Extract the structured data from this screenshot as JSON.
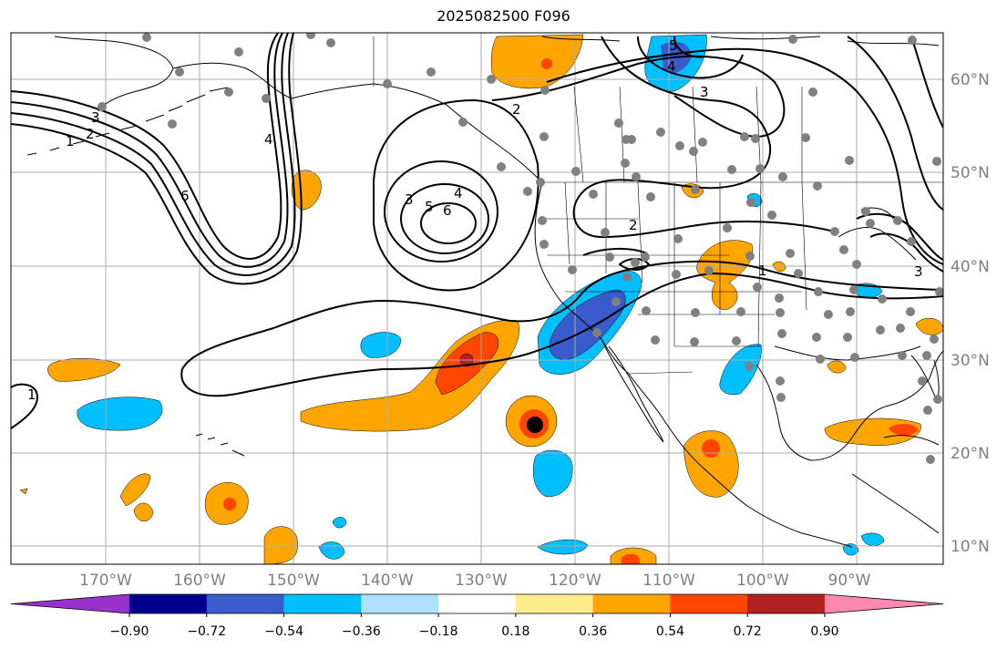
{
  "title": "2025082500 F096",
  "lat_labels": [
    "60°N",
    "50°N",
    "40°N",
    "30°N",
    "20°N",
    "10°N"
  ],
  "lon_labels": [
    "170°W",
    "160°W",
    "150°W",
    "140°W",
    "130°W",
    "120°W",
    "110°W",
    "100°W",
    "90°W"
  ],
  "colorbar": {
    "colors": [
      "#9932cc",
      "#00008b",
      "#3a5bcc",
      "#00bfff",
      "#b0e0ff",
      "#ffffff",
      "#ffec8b",
      "#ffa500",
      "#ff4500",
      "#b22222",
      "#ff88b0"
    ],
    "labels": [
      "−0.90",
      "−0.72",
      "−0.54",
      "−0.36",
      "−0.18",
      "0.18",
      "0.36",
      "0.54",
      "0.72",
      "0.90"
    ]
  },
  "contour_labels": [
    "1",
    "2",
    "3",
    "4",
    "5",
    "6"
  ],
  "colors": {
    "grid": "#aaaaaa",
    "coast": "#000000",
    "positive": "#ffa500",
    "strong_positive": "#ff4500",
    "negative": "#00bfff",
    "strong_negative": "#3a5bcc",
    "station_dot": "#808080"
  }
}
